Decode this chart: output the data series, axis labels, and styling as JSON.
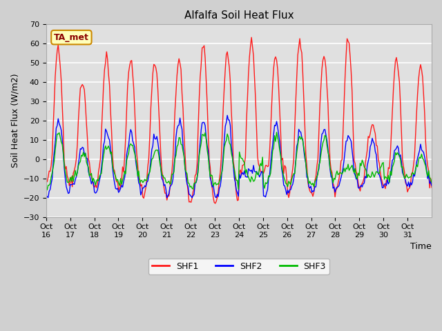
{
  "title": "Alfalfa Soil Heat Flux",
  "xlabel": "Time",
  "ylabel": "Soil Heat Flux (W/m2)",
  "ylim": [
    -30,
    70
  ],
  "yticks": [
    -30,
    -20,
    -10,
    0,
    10,
    20,
    30,
    40,
    50,
    60,
    70
  ],
  "plot_bg_color": "#e0e0e0",
  "fig_bg_color": "#d0d0d0",
  "grid_color": "#ffffff",
  "shf1_color": "#ff1a1a",
  "shf2_color": "#0000ff",
  "shf3_color": "#00bb00",
  "annotation_text": "TA_met",
  "annotation_bg": "#ffffbb",
  "annotation_border": "#cc8800",
  "x_tick_labels": [
    "Oct\n16",
    "Oct\n17",
    "Oct\n18",
    "Oct\n19",
    "Oct\n20",
    "Oct\n21",
    "Oct\n22",
    "Oct\n23",
    "Oct\n24",
    "Oct\n25",
    "Oct\n26",
    "Oct\n27",
    "Oct\n28",
    "Oct\n29",
    "Oct\n30",
    "Oct\n31"
  ],
  "n_days": 16,
  "shf1_peaks": [
    59,
    40,
    53,
    52,
    50,
    50,
    60,
    55,
    62,
    54,
    62,
    54,
    62,
    18,
    52,
    48
  ],
  "shf1_troughs": [
    -12,
    -12,
    -15,
    -15,
    -20,
    -22,
    -22,
    -22,
    -7,
    -7,
    -18,
    -18,
    -15,
    -15,
    -15,
    -15
  ],
  "shf2_peaks": [
    29,
    14,
    22,
    21,
    20,
    28,
    28,
    30,
    2,
    27,
    22,
    24,
    20,
    18,
    14,
    13
  ],
  "shf3_peaks": [
    21,
    10,
    14,
    15,
    12,
    16,
    20,
    19,
    -9,
    19,
    19,
    18,
    3,
    -5,
    10,
    8
  ],
  "legend_labels": [
    "SHF1",
    "SHF2",
    "SHF3"
  ]
}
